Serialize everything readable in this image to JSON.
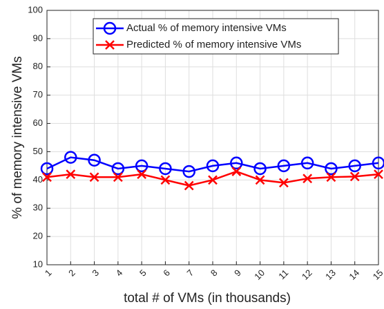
{
  "chart_data": {
    "type": "line",
    "x_label": "total # of VMs (in thousands)",
    "y_label": "% of memory intensive VMs",
    "x": [
      1,
      2,
      3,
      4,
      5,
      6,
      7,
      8,
      9,
      10,
      11,
      12,
      13,
      14,
      15
    ],
    "xlim": [
      1,
      15
    ],
    "xticks": [
      1,
      2,
      3,
      4,
      5,
      6,
      7,
      8,
      9,
      10,
      11,
      12,
      13,
      14,
      15
    ],
    "ylim": [
      10,
      100
    ],
    "yticks": [
      10,
      20,
      30,
      40,
      50,
      60,
      70,
      80,
      90,
      100
    ],
    "grid": true,
    "legend": "upper left",
    "series": [
      {
        "name": "Actual % of memory intensive VMs",
        "color": "#0000ff",
        "marker": "circle",
        "values": [
          44,
          48,
          47,
          44,
          45,
          44,
          43,
          45,
          46,
          44,
          45,
          46,
          44,
          45,
          46
        ]
      },
      {
        "name": "Predicted % of memory intensive VMs",
        "color": "#ff0000",
        "marker": "x",
        "values": [
          41,
          42,
          41,
          41,
          42,
          40,
          38,
          40,
          43,
          40,
          39,
          40.5,
          41,
          41.2,
          42
        ]
      }
    ]
  }
}
